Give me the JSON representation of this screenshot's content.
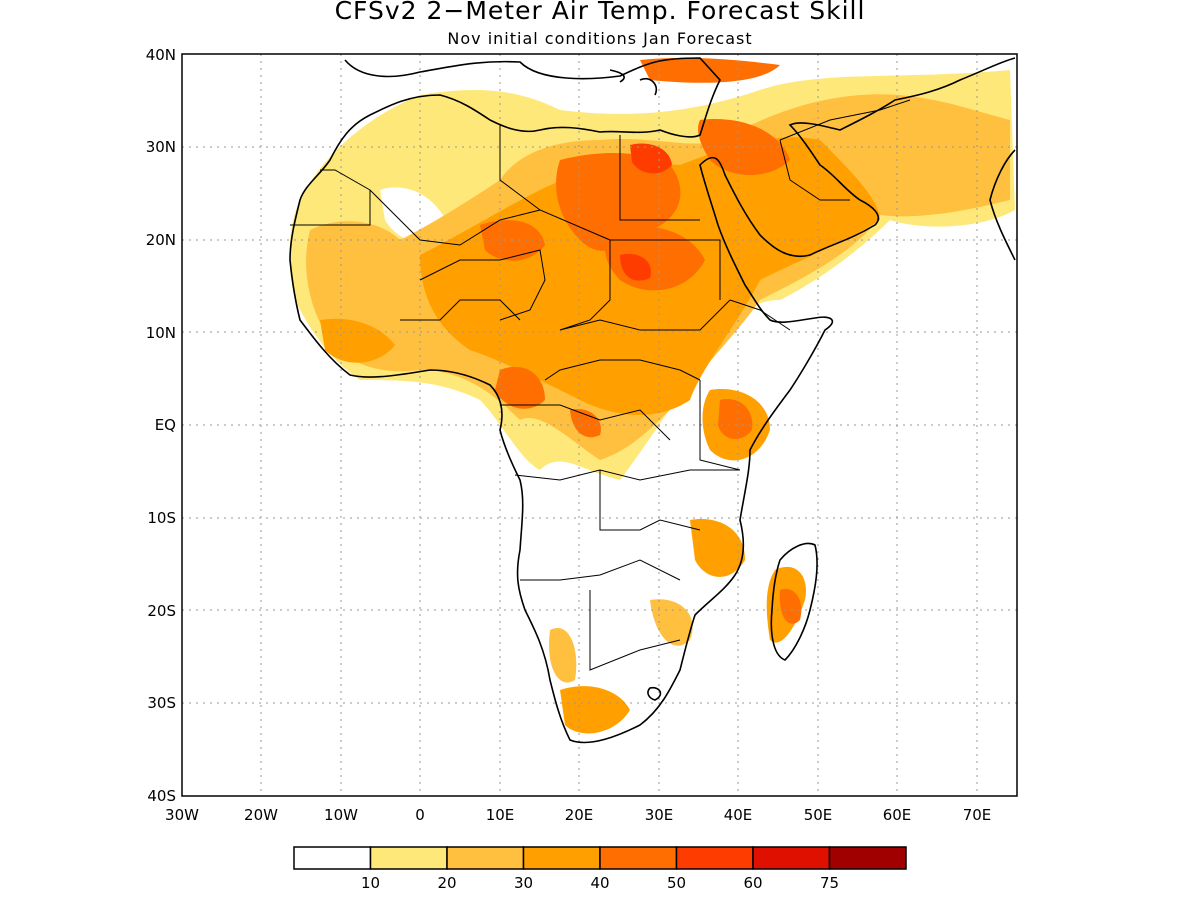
{
  "title": "CFSv2 2−Meter Air Temp. Forecast Skill",
  "subtitle": "Nov initial conditions  Jan Forecast",
  "map": {
    "region": "Africa and Arabian Peninsula",
    "lon_range": [
      -30,
      75
    ],
    "lat_range": [
      -40,
      40
    ],
    "lat_labels": [
      "40N",
      "30N",
      "20N",
      "10N",
      "EQ",
      "10S",
      "20S",
      "30S",
      "40S"
    ],
    "lon_labels": [
      "30W",
      "20W",
      "10W",
      "0",
      "10E",
      "20E",
      "30E",
      "40E",
      "50E",
      "60E",
      "70E"
    ],
    "grid": "dotted"
  },
  "colorbar": {
    "colors": [
      "#ffffff",
      "#ffe87a",
      "#ffc040",
      "#ffa000",
      "#ff6e00",
      "#ff3c00",
      "#e01000",
      "#a00000"
    ],
    "labels": [
      "10",
      "20",
      "30",
      "40",
      "50",
      "60",
      "75"
    ]
  }
}
